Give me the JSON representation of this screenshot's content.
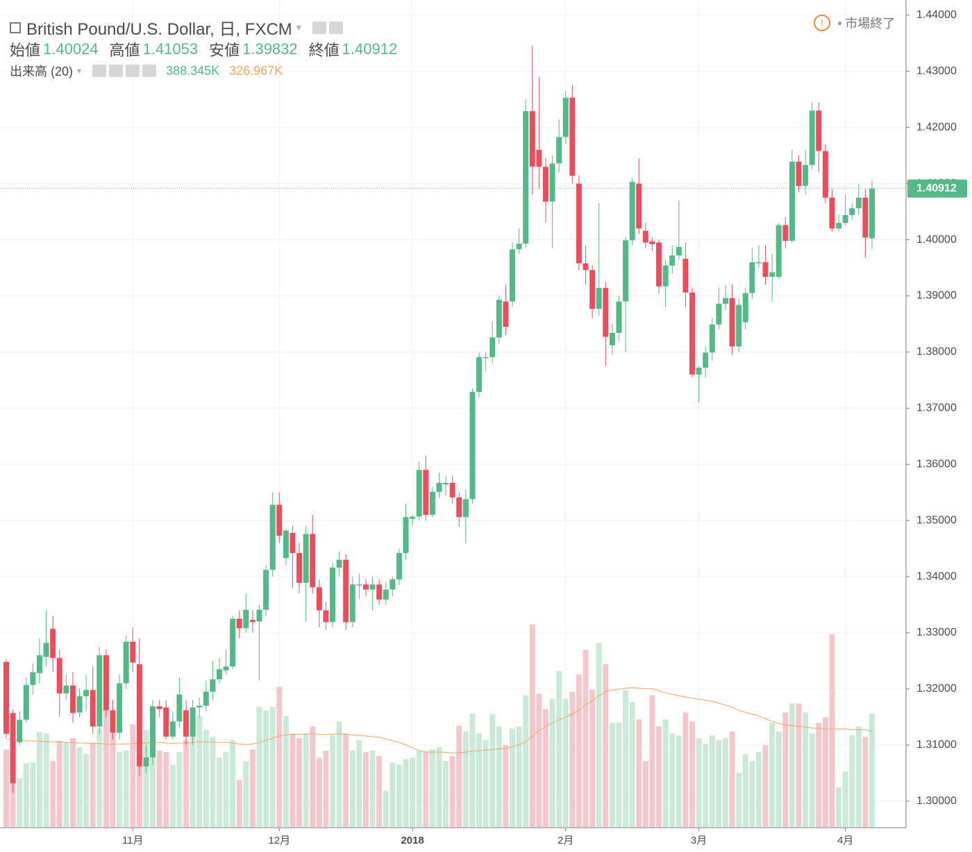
{
  "chart_data": {
    "type": "candlestick",
    "title": "British Pound/U.S. Dollar, 日, FXCM",
    "status": "市場終了",
    "ohlc_labels": {
      "open": "始値",
      "high": "高値",
      "low": "安値",
      "close": "終値"
    },
    "categories": [
      null,
      null,
      null,
      null,
      null,
      null,
      null,
      null,
      null,
      null,
      null,
      null,
      null,
      null,
      null,
      null,
      null,
      null,
      null,
      "11月",
      null,
      null,
      null,
      null,
      null,
      null,
      null,
      null,
      null,
      null,
      null,
      null,
      null,
      null,
      null,
      null,
      null,
      null,
      null,
      null,
      null,
      "12月",
      null,
      null,
      null,
      null,
      null,
      null,
      null,
      null,
      null,
      null,
      null,
      null,
      null,
      null,
      null,
      null,
      null,
      null,
      null,
      "2018",
      null,
      null,
      null,
      null,
      null,
      null,
      null,
      null,
      null,
      null,
      null,
      null,
      null,
      null,
      null,
      null,
      null,
      null,
      null,
      null,
      null,
      null,
      "2月",
      null,
      null,
      null,
      null,
      null,
      null,
      null,
      null,
      null,
      null,
      null,
      null,
      null,
      null,
      null,
      null,
      null,
      null,
      null,
      "3月",
      null,
      null,
      null,
      null,
      null,
      null,
      null,
      null,
      null,
      null,
      null,
      null,
      null,
      null,
      null,
      null,
      null,
      null,
      null,
      null,
      null,
      "4月",
      null,
      null,
      null,
      null
    ],
    "open": [
      1.3248,
      1.3157,
      1.3105,
      1.3145,
      1.3207,
      1.3228,
      1.3257,
      1.3307,
      1.3255,
      1.3192,
      1.3206,
      1.3158,
      1.3187,
      1.3198,
      1.3133,
      1.326,
      1.3162,
      1.3122,
      1.321,
      1.3284,
      1.3244,
      1.3062,
      1.3078,
      1.3169,
      1.3167,
      1.3115,
      1.3142,
      1.3162,
      1.3115,
      1.3167,
      1.317,
      1.3195,
      1.3217,
      1.3233,
      1.324,
      1.3325,
      1.3308,
      1.3323,
      1.332,
      1.3341,
      1.3412,
      1.3528,
      1.3433,
      1.3478,
      1.3442,
      1.3389,
      1.3476,
      1.3381,
      1.334,
      1.3319,
      1.3416,
      1.343,
      1.3319,
      1.3384,
      1.3386,
      1.3377,
      1.3386,
      1.3359,
      1.3377,
      1.3395,
      1.3442,
      1.3503,
      1.3507,
      1.359,
      1.351,
      1.3551,
      1.3564,
      1.3567,
      1.3541,
      1.3506,
      1.3538,
      1.3729,
      1.3789,
      1.3791,
      1.3826,
      1.389,
      1.389,
      1.3983,
      1.3993,
      1.4229,
      1.416,
      1.413,
      1.4068,
      1.4136,
      1.4183,
      1.4253,
      1.41,
      1.3958,
      1.3946,
      1.3877,
      1.3914,
      1.3812,
      1.3834,
      1.389,
      1.3999,
      1.41,
      1.4016,
      1.3997,
      1.3995,
      1.3917,
      1.3954,
      1.3972,
      1.3966,
      1.3906,
      1.376,
      1.3772,
      1.3799,
      1.3849,
      1.3886,
      1.3896,
      1.381,
      1.3853,
      1.3905,
      1.3958,
      1.396,
      1.3934,
      1.3934,
      1.4026,
      1.3998,
      1.4139,
      1.4096,
      1.4133,
      1.423,
      1.4158,
      1.4075,
      1.402,
      1.403,
      1.4044,
      1.4056,
      1.4075,
      1.40024
    ],
    "high": [
      1.3253,
      1.3163,
      1.316,
      1.322,
      1.3245,
      1.329,
      1.334,
      1.333,
      1.327,
      1.3225,
      1.323,
      1.32,
      1.3225,
      1.324,
      1.3275,
      1.327,
      1.318,
      1.3225,
      1.3295,
      1.331,
      1.329,
      1.31,
      1.318,
      1.318,
      1.318,
      1.316,
      1.322,
      1.318,
      1.318,
      1.3185,
      1.3215,
      1.325,
      1.3255,
      1.327,
      1.333,
      1.334,
      1.337,
      1.334,
      1.335,
      1.342,
      1.355,
      1.355,
      1.3485,
      1.349,
      1.346,
      1.349,
      1.351,
      1.3395,
      1.3355,
      1.3425,
      1.3445,
      1.344,
      1.34,
      1.3405,
      1.3395,
      1.34,
      1.3395,
      1.339,
      1.34,
      1.345,
      1.353,
      1.351,
      1.3605,
      1.3615,
      1.356,
      1.3585,
      1.358,
      1.358,
      1.355,
      1.3555,
      1.3735,
      1.38,
      1.38,
      1.3855,
      1.39,
      1.392,
      1.3995,
      1.402,
      1.425,
      1.4345,
      1.429,
      1.4145,
      1.415,
      1.4215,
      1.4265,
      1.4275,
      1.4115,
      1.399,
      1.3955,
      1.4065,
      1.3925,
      1.385,
      1.39,
      1.4005,
      1.411,
      1.4145,
      1.403,
      1.4005,
      1.4,
      1.3965,
      1.399,
      1.407,
      1.3995,
      1.3915,
      1.3775,
      1.381,
      1.386,
      1.3915,
      1.392,
      1.392,
      1.3895,
      1.3915,
      1.3985,
      1.399,
      1.399,
      1.3975,
      1.403,
      1.404,
      1.416,
      1.415,
      1.416,
      1.4245,
      1.4245,
      1.417,
      1.409,
      1.4045,
      1.408,
      1.4065,
      1.41,
      1.409,
      1.41053
    ],
    "low": [
      1.3113,
      1.3015,
      1.31,
      1.314,
      1.319,
      1.321,
      1.324,
      1.323,
      1.315,
      1.318,
      1.314,
      1.315,
      1.316,
      1.312,
      1.312,
      1.315,
      1.311,
      1.311,
      1.32,
      1.323,
      1.3045,
      1.305,
      1.3065,
      1.315,
      1.311,
      1.311,
      1.313,
      1.31,
      1.31,
      1.315,
      1.316,
      1.318,
      1.321,
      1.3225,
      1.3235,
      1.329,
      1.33,
      1.33,
      1.3215,
      1.333,
      1.34,
      1.346,
      1.342,
      1.338,
      1.337,
      1.332,
      1.337,
      1.331,
      1.3305,
      1.331,
      1.34,
      1.3305,
      1.331,
      1.336,
      1.3365,
      1.334,
      1.335,
      1.335,
      1.3365,
      1.3385,
      1.343,
      1.349,
      1.35,
      1.35,
      1.3505,
      1.354,
      1.3545,
      1.353,
      1.349,
      1.346,
      1.353,
      1.372,
      1.3765,
      1.378,
      1.3815,
      1.383,
      1.388,
      1.3975,
      1.3985,
      1.408,
      1.409,
      1.403,
      1.3985,
      1.412,
      1.417,
      1.41,
      1.3945,
      1.392,
      1.386,
      1.3865,
      1.3775,
      1.3795,
      1.382,
      1.38,
      1.399,
      1.401,
      1.3985,
      1.398,
      1.3905,
      1.388,
      1.394,
      1.3965,
      1.388,
      1.3755,
      1.371,
      1.3755,
      1.3785,
      1.384,
      1.3875,
      1.3795,
      1.38,
      1.384,
      1.3895,
      1.395,
      1.392,
      1.389,
      1.393,
      1.3985,
      1.3995,
      1.4085,
      1.408,
      1.4125,
      1.412,
      1.4065,
      1.4015,
      1.4015,
      1.4025,
      1.4035,
      1.4045,
      1.3968,
      1.39832
    ],
    "close": [
      1.312,
      1.3032,
      1.3145,
      1.3207,
      1.323,
      1.326,
      1.3282,
      1.3255,
      1.3192,
      1.3206,
      1.3157,
      1.3187,
      1.3198,
      1.3133,
      1.326,
      1.3162,
      1.3122,
      1.321,
      1.3284,
      1.3247,
      1.3062,
      1.3078,
      1.3169,
      1.3164,
      1.3115,
      1.3142,
      1.319,
      1.3115,
      1.3167,
      1.317,
      1.3195,
      1.3217,
      1.3235,
      1.324,
      1.3325,
      1.3308,
      1.3341,
      1.3319,
      1.3341,
      1.3412,
      1.3528,
      1.3473,
      1.3482,
      1.3442,
      1.3389,
      1.3476,
      1.3381,
      1.334,
      1.3319,
      1.3416,
      1.343,
      1.3319,
      1.3386,
      1.3386,
      1.3377,
      1.3386,
      1.3359,
      1.3377,
      1.3395,
      1.3442,
      1.3506,
      1.3507,
      1.359,
      1.351,
      1.3551,
      1.3567,
      1.3567,
      1.3541,
      1.3506,
      1.3538,
      1.3729,
      1.3791,
      1.3791,
      1.3826,
      1.3893,
      1.3845,
      1.3983,
      1.3993,
      1.4229,
      1.413,
      1.413,
      1.4068,
      1.4136,
      1.4183,
      1.4253,
      1.4114,
      1.3958,
      1.3946,
      1.3877,
      1.3914,
      1.3827,
      1.3834,
      1.389,
      1.3999,
      1.4103,
      1.402,
      1.3995,
      1.3992,
      1.3917,
      1.3954,
      1.3972,
      1.3987,
      1.3906,
      1.376,
      1.3772,
      1.3799,
      1.3849,
      1.3886,
      1.3896,
      1.381,
      1.3884,
      1.3905,
      1.396,
      1.396,
      1.3934,
      1.3942,
      1.4026,
      1.3998,
      1.4139,
      1.4096,
      1.4133,
      1.423,
      1.4158,
      1.4075,
      1.402,
      1.403,
      1.4044,
      1.4056,
      1.4075,
      1.4004,
      1.40912
    ],
    "up_color": "#53b987",
    "down_color": "#eb4d5c",
    "ylim": [
      1.2954,
      1.4427
    ],
    "yticks": [
      {
        "value": 1.3,
        "label": "1.30000"
      },
      {
        "value": 1.31,
        "label": "1.31000"
      },
      {
        "value": 1.32,
        "label": "1.32000"
      },
      {
        "value": 1.33,
        "label": "1.33000"
      },
      {
        "value": 1.34,
        "label": "1.34000"
      },
      {
        "value": 1.35,
        "label": "1.35000"
      },
      {
        "value": 1.36,
        "label": "1.36000"
      },
      {
        "value": 1.37,
        "label": "1.37000"
      },
      {
        "value": 1.38,
        "label": "1.38000"
      },
      {
        "value": 1.39,
        "label": "1.39000"
      },
      {
        "value": 1.4,
        "label": "1.40000"
      },
      {
        "value": 1.41,
        "label": "1.41000"
      },
      {
        "value": 1.42,
        "label": "1.42000"
      },
      {
        "value": 1.43,
        "label": "1.43000"
      },
      {
        "value": 1.44,
        "label": "1.44000"
      }
    ],
    "grid": true,
    "last_price_label": "1.40912",
    "volume": {
      "name": "出来高 (20)",
      "values": [
        266,
        266,
        167,
        219,
        221,
        326,
        321,
        226,
        295,
        290,
        305,
        274,
        250,
        290,
        338,
        405,
        328,
        257,
        262,
        352,
        298,
        333,
        321,
        262,
        257,
        214,
        257,
        298,
        345,
        381,
        333,
        309,
        238,
        257,
        298,
        162,
        226,
        266,
        412,
        400,
        412,
        481,
        381,
        321,
        305,
        321,
        345,
        238,
        262,
        314,
        362,
        321,
        262,
        298,
        257,
        262,
        243,
        124,
        221,
        214,
        233,
        238,
        262,
        257,
        266,
        274,
        226,
        243,
        347,
        328,
        388,
        321,
        298,
        388,
        345,
        281,
        338,
        345,
        452,
        695,
        457,
        405,
        440,
        535,
        440,
        464,
        524,
        607,
        471,
        631,
        559,
        357,
        357,
        469,
        428,
        369,
        226,
        452,
        345,
        369,
        321,
        314,
        393,
        362,
        305,
        286,
        314,
        298,
        305,
        328,
        186,
        250,
        226,
        257,
        281,
        357,
        328,
        393,
        424,
        424,
        393,
        321,
        357,
        376,
        662,
        136,
        190,
        314,
        345,
        309,
        388.345
      ],
      "value_label": "388.345K",
      "ma": [
        302,
        300,
        298,
        296,
        295,
        295,
        293,
        292,
        292,
        290,
        290,
        288,
        288,
        286,
        286,
        285,
        285,
        285,
        285,
        286,
        287,
        288,
        290,
        290,
        288,
        287,
        288,
        288,
        290,
        292,
        292,
        292,
        290,
        290,
        288,
        285,
        283,
        285,
        290,
        298,
        305,
        312,
        316,
        318,
        318,
        318,
        320,
        318,
        317,
        318,
        320,
        318,
        316,
        314,
        312,
        310,
        308,
        302,
        296,
        290,
        282,
        272,
        262,
        258,
        257,
        257,
        256,
        254,
        255,
        257,
        260,
        262,
        264,
        266,
        268,
        270,
        275,
        282,
        292,
        312,
        330,
        345,
        356,
        368,
        377,
        388,
        400,
        420,
        432,
        450,
        465,
        470,
        473,
        476,
        478,
        476,
        474,
        474,
        468,
        460,
        455,
        450,
        446,
        442,
        438,
        435,
        430,
        425,
        418,
        410,
        400,
        393,
        387,
        380,
        372,
        362,
        355,
        350,
        348,
        345,
        343,
        340,
        338,
        336,
        336,
        336,
        336,
        334,
        334,
        334,
        326.967
      ],
      "ma_label": "326.967K",
      "ma_color": "#f5a35c",
      "up_color": "#cbe9d8",
      "down_color": "#f4c7cc",
      "lim": [
        0,
        2837
      ]
    }
  }
}
